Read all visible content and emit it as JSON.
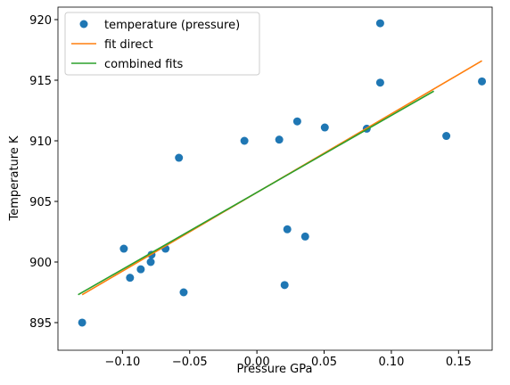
{
  "chart_data": {
    "type": "scatter",
    "xlabel": "Pressure GPa",
    "ylabel": "Temperature K",
    "xlim": [
      -0.148,
      0.175
    ],
    "ylim": [
      892.72,
      921.03
    ],
    "xticks": [
      {
        "value": -0.1,
        "label": "−0.10"
      },
      {
        "value": -0.05,
        "label": "−0.05"
      },
      {
        "value": 0.0,
        "label": "0.00"
      },
      {
        "value": 0.05,
        "label": "0.05"
      },
      {
        "value": 0.1,
        "label": "0.10"
      },
      {
        "value": 0.15,
        "label": "0.15"
      }
    ],
    "yticks": [
      895,
      900,
      905,
      910,
      915,
      920
    ],
    "legend": "upper left",
    "series": [
      {
        "name": "temperature (pressure)",
        "color": "#1f77b4",
        "kind": "scatter",
        "x": [
          -0.13,
          -0.099,
          -0.0944,
          -0.0864,
          -0.079,
          -0.0784,
          -0.068,
          -0.058,
          -0.0545,
          -0.0093,
          0.0166,
          0.03,
          0.0226,
          0.0206,
          0.0359,
          0.0505,
          0.0817,
          0.0917,
          0.0917,
          0.1409,
          0.1674
        ],
        "values": [
          895.0,
          901.1,
          898.7,
          899.4,
          900.0,
          900.6,
          901.1,
          908.6,
          897.5,
          910.0,
          910.1,
          911.6,
          902.7,
          898.1,
          902.1,
          911.1,
          911.0,
          919.7,
          914.8,
          910.4,
          914.9
        ]
      },
      {
        "name": "fit direct",
        "color": "#ff7f0e",
        "kind": "line",
        "x": [
          -0.13,
          0.1674
        ],
        "values": [
          897.3,
          916.6
        ]
      },
      {
        "name": "combined fits",
        "color": "#2ca02c",
        "kind": "line",
        "x": [
          -0.133,
          0.1316
        ],
        "values": [
          897.3,
          914.1
        ]
      }
    ]
  }
}
